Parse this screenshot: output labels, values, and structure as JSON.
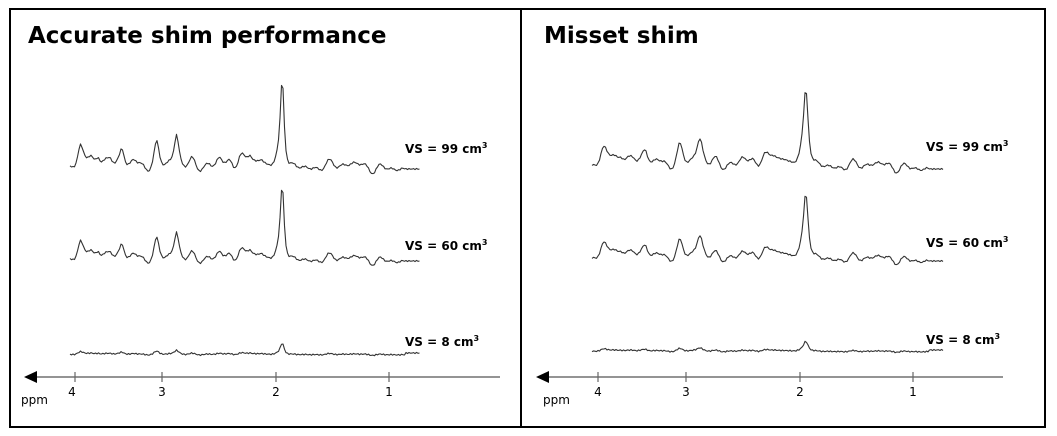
{
  "panels": [
    {
      "id": "left",
      "title": "Accurate shim performance",
      "spectra": [
        {
          "vs_prefix": "VS = 99 cm",
          "vs_sup": "3",
          "amplitude": 1.0,
          "broadening": 1.0
        },
        {
          "vs_prefix": "VS = 60 cm",
          "vs_sup": "3",
          "amplitude": 0.85,
          "broadening": 1.0
        },
        {
          "vs_prefix": "VS = 8 cm",
          "vs_sup": "3",
          "amplitude": 0.13,
          "broadening": 1.0
        }
      ],
      "axis": {
        "unit": "ppm",
        "ticks": [
          "4",
          "3",
          "2",
          "1"
        ]
      }
    },
    {
      "id": "right",
      "title": "Misset shim",
      "spectra": [
        {
          "vs_prefix": "VS = 99 cm",
          "vs_sup": "3",
          "amplitude": 1.0,
          "broadening": 1.3
        },
        {
          "vs_prefix": "VS = 60 cm",
          "vs_sup": "3",
          "amplitude": 0.85,
          "broadening": 1.3
        },
        {
          "vs_prefix": "VS = 8 cm",
          "vs_sup": "3",
          "amplitude": 0.13,
          "broadening": 1.3
        }
      ],
      "axis": {
        "unit": "ppm",
        "ticks": [
          "4",
          "3",
          "2",
          "1"
        ]
      }
    }
  ],
  "colors": {
    "border": "#000000",
    "trace": "#333333",
    "axis": "#555555"
  }
}
